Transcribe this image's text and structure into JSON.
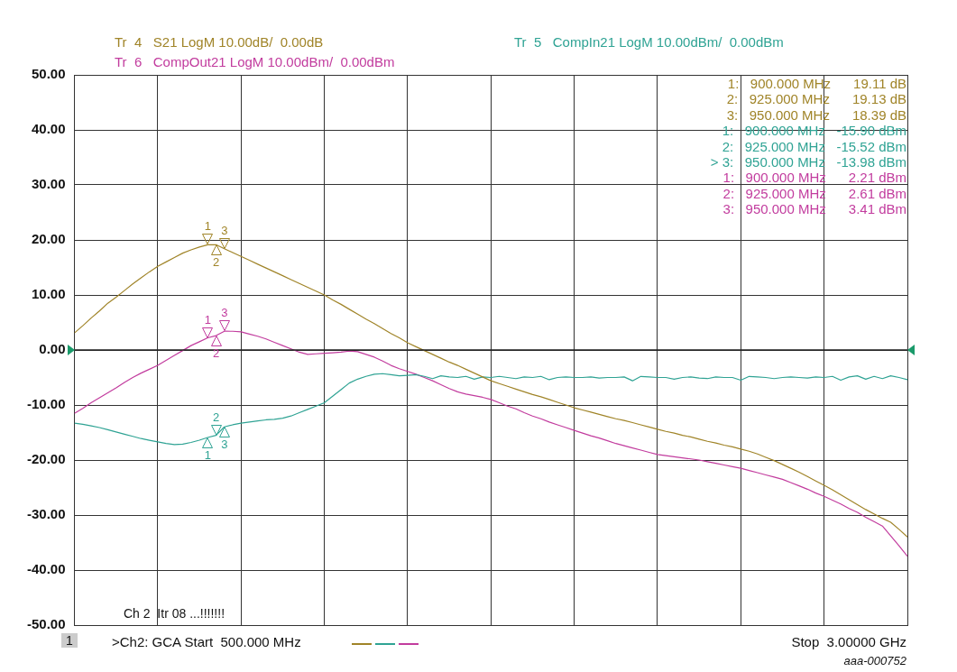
{
  "chart_data": {
    "type": "line",
    "ylim": [
      -50,
      50
    ],
    "categories": [
      null,
      null,
      null,
      null,
      null,
      null,
      null,
      null,
      null,
      null,
      null,
      null,
      null,
      null,
      null,
      null,
      null,
      null,
      null,
      null,
      null,
      null,
      null,
      null,
      null,
      null,
      null,
      null,
      null,
      null,
      null,
      null,
      null,
      null,
      null,
      null,
      null,
      null,
      null,
      null,
      null,
      null,
      null,
      null,
      null,
      null,
      null,
      null,
      null,
      null,
      null,
      null,
      null,
      null,
      null,
      null,
      null,
      null,
      null,
      null,
      null,
      null,
      null,
      null,
      null,
      null,
      null,
      null,
      null,
      null,
      null,
      null,
      null,
      null,
      null,
      null,
      null,
      null,
      null,
      null,
      null,
      null,
      null,
      null,
      null,
      null,
      null,
      null,
      null,
      null,
      null,
      null,
      null,
      null,
      null,
      null,
      null,
      null,
      null,
      null,
      null
    ],
    "yticks": [
      {
        "value": 50,
        "label": "50.00"
      },
      {
        "value": 40,
        "label": "40.00"
      },
      {
        "value": 30,
        "label": "30.00"
      },
      {
        "value": 20,
        "label": "20.00"
      },
      {
        "value": 10,
        "label": "10.00"
      },
      {
        "value": 0,
        "label": "0.00"
      },
      {
        "value": -10,
        "label": "-10.00"
      },
      {
        "value": -20,
        "label": "-20.00"
      },
      {
        "value": -30,
        "label": "-30.00"
      },
      {
        "value": -40,
        "label": "-40.00"
      },
      {
        "value": -50,
        "label": "-50.00"
      }
    ],
    "tick_labels": "y",
    "grid": true,
    "marker": "none",
    "line_style": "solid",
    "ref_lines": [
      {
        "axis": "y",
        "value": 0,
        "color": "#222222"
      }
    ],
    "series": [
      {
        "name": "Tr  4   S21 LogM 10.00dB/  0.00dB",
        "color": "#a08428",
        "values": [
          3.1,
          4.4,
          5.8,
          7.1,
          8.5,
          9.6,
          10.8,
          12.0,
          13.1,
          14.2,
          15.2,
          16.0,
          16.8,
          17.6,
          18.2,
          18.7,
          19.11,
          19.13,
          18.39,
          17.7,
          17.0,
          16.3,
          15.6,
          14.9,
          14.2,
          13.5,
          12.8,
          12.1,
          11.4,
          10.7,
          10.0,
          9.1,
          8.3,
          7.4,
          6.5,
          5.6,
          4.8,
          3.9,
          3.0,
          2.2,
          1.3,
          0.6,
          -0.1,
          -0.8,
          -1.5,
          -2.2,
          -2.8,
          -3.5,
          -4.2,
          -4.9,
          -5.6,
          -6.1,
          -6.6,
          -7.1,
          -7.6,
          -8.1,
          -8.5,
          -9.0,
          -9.5,
          -10.0,
          -10.5,
          -10.9,
          -11.3,
          -11.7,
          -12.1,
          -12.5,
          -12.8,
          -13.2,
          -13.6,
          -14.0,
          -14.4,
          -14.8,
          -15.1,
          -15.5,
          -15.8,
          -16.2,
          -16.6,
          -16.9,
          -17.3,
          -17.6,
          -18.0,
          -18.4,
          -18.9,
          -19.5,
          -20.1,
          -20.8,
          -21.5,
          -22.2,
          -23.0,
          -23.8,
          -24.6,
          -25.4,
          -26.3,
          -27.2,
          -28.1,
          -29.0,
          -29.8,
          -30.6,
          -31.3,
          -32.6,
          -34.0
        ]
      },
      {
        "name": "Tr  5   CompIn21 LogM 10.00dBm/  0.00dBm",
        "color": "#2fa394",
        "values": [
          -13.3,
          -13.5,
          -13.8,
          -14.1,
          -14.5,
          -14.9,
          -15.3,
          -15.7,
          -16.1,
          -16.4,
          -16.7,
          -17.0,
          -17.2,
          -17.1,
          -16.8,
          -16.4,
          -15.9,
          -15.52,
          -13.98,
          -13.6,
          -13.3,
          -13.1,
          -12.9,
          -12.7,
          -12.6,
          -12.4,
          -12.0,
          -11.4,
          -10.8,
          -10.2,
          -9.6,
          -8.4,
          -7.2,
          -6.0,
          -5.3,
          -4.8,
          -4.4,
          -4.3,
          -4.5,
          -4.7,
          -4.6,
          -4.5,
          -4.8,
          -5.2,
          -4.7,
          -4.9,
          -5.0,
          -4.8,
          -5.3,
          -4.9,
          -5.0,
          -4.8,
          -5.0,
          -5.2,
          -4.9,
          -5.0,
          -4.8,
          -5.4,
          -5.0,
          -4.9,
          -5.0,
          -5.0,
          -4.9,
          -5.1,
          -5.0,
          -5.0,
          -4.9,
          -5.6,
          -4.8,
          -4.9,
          -5.0,
          -5.0,
          -5.3,
          -5.0,
          -4.9,
          -5.1,
          -5.2,
          -4.9,
          -5.0,
          -5.0,
          -5.5,
          -4.8,
          -4.9,
          -5.0,
          -5.2,
          -5.0,
          -4.9,
          -5.0,
          -5.1,
          -4.9,
          -5.0,
          -4.8,
          -5.5,
          -4.9,
          -4.7,
          -5.3,
          -4.8,
          -5.2,
          -4.7,
          -5.0,
          -5.4
        ]
      },
      {
        "name": "Tr  6   CompOut21 LogM 10.00dBm/  0.00dBm",
        "color": "#c23c9e",
        "values": [
          -11.5,
          -10.6,
          -9.6,
          -8.7,
          -7.8,
          -6.9,
          -5.9,
          -5.0,
          -4.2,
          -3.5,
          -2.8,
          -1.9,
          -1.0,
          -0.1,
          0.8,
          1.5,
          2.21,
          2.61,
          3.41,
          3.4,
          3.3,
          2.9,
          2.5,
          2.0,
          1.4,
          0.8,
          0.2,
          -0.4,
          -0.8,
          -0.7,
          -0.6,
          -0.5,
          -0.4,
          -0.2,
          -0.3,
          -0.8,
          -1.3,
          -2.0,
          -2.8,
          -3.4,
          -3.9,
          -4.4,
          -5.0,
          -5.6,
          -6.3,
          -7.0,
          -7.6,
          -8.0,
          -8.3,
          -8.6,
          -9.0,
          -9.6,
          -10.2,
          -10.7,
          -11.4,
          -12.0,
          -12.5,
          -13.1,
          -13.6,
          -14.1,
          -14.6,
          -15.1,
          -15.6,
          -16.0,
          -16.5,
          -17.0,
          -17.4,
          -17.8,
          -18.2,
          -18.6,
          -19.0,
          -19.2,
          -19.4,
          -19.6,
          -19.8,
          -20.0,
          -20.3,
          -20.6,
          -20.9,
          -21.2,
          -21.5,
          -21.9,
          -22.3,
          -22.7,
          -23.1,
          -23.5,
          -24.1,
          -24.7,
          -25.3,
          -26.0,
          -26.6,
          -27.3,
          -28.0,
          -28.8,
          -29.5,
          -30.4,
          -31.2,
          -32.0,
          -33.8,
          -35.6,
          -37.5
        ]
      }
    ],
    "annotations": [
      "1:   900.000 MHz      19.11 dB",
      "2:   925.000 MHz      19.13 dB",
      "3:   950.000 MHz      18.39 dB",
      "1:   900.000 MHz   -15.90 dBm",
      "2:   925.000 MHz   -15.52 dBm",
      "> 3:   950.000 MHz   -13.98 dBm",
      "1:   900.000 MHz      2.21 dBm",
      "2:   925.000 MHz      2.61 dBm",
      "3:   950.000 MHz      3.41 dBm",
      "Ch 2  Itr 08 ...!!!!!!!",
      "1",
      ">Ch2: GCA Start  500.000 MHz",
      "Stop  3.00000 GHz",
      "aaa-000752",
      {
        "text": "1",
        "y": 19.11
      },
      {
        "text": "2",
        "y": 19.13
      },
      {
        "text": "3",
        "y": 18.39
      },
      {
        "text": "1",
        "y": -15.9
      },
      {
        "text": "2",
        "y": -15.52
      },
      {
        "text": "3",
        "y": -13.98
      },
      {
        "text": "1",
        "y": 2.21
      },
      {
        "text": "2",
        "y": 2.61
      },
      {
        "text": "3",
        "y": 3.41
      }
    ]
  }
}
